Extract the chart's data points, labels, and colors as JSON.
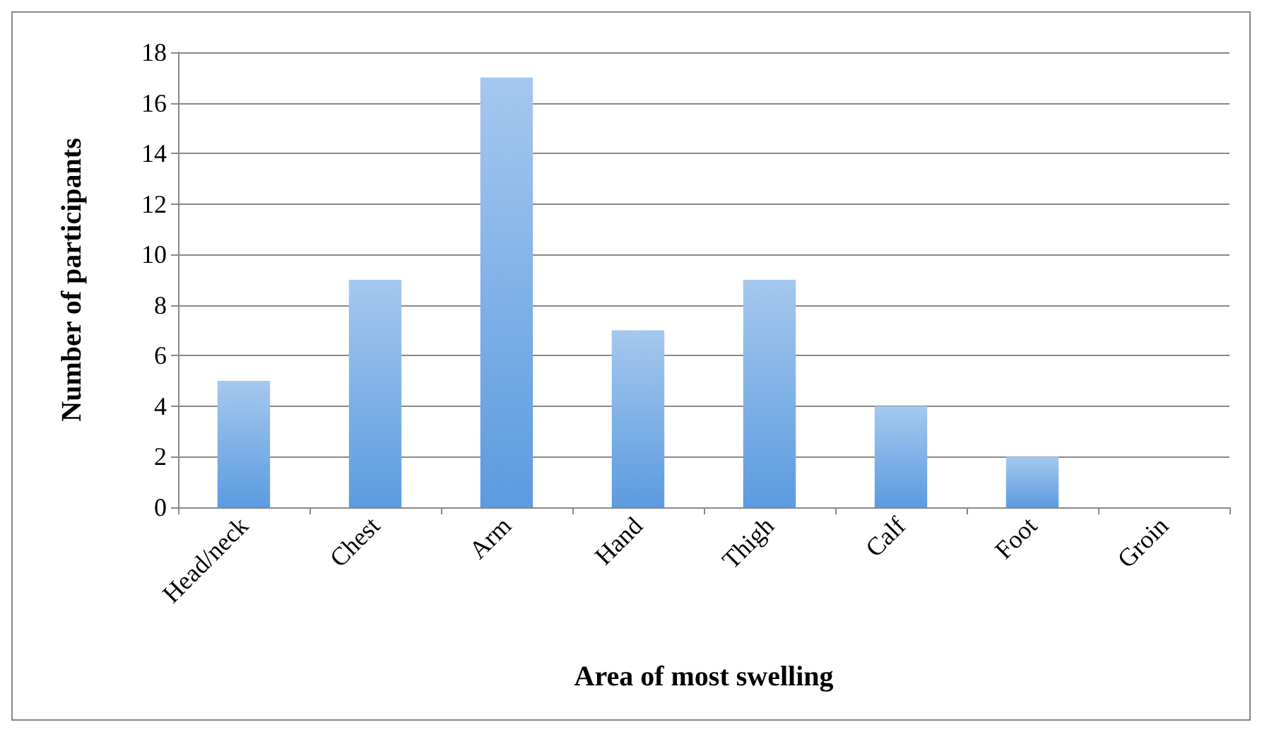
{
  "chart_data": {
    "type": "bar",
    "xlabel": "Area of most swelling",
    "ylabel": "Number of participants",
    "categories": [
      "Head/neck",
      "Chest",
      "Arm",
      "Hand",
      "Thigh",
      "Calf",
      "Foot",
      "Groin"
    ],
    "values": [
      5,
      9,
      17,
      7,
      9,
      4,
      2,
      0
    ],
    "color": "#5b9be0",
    "ylim": [
      0,
      18
    ],
    "yticks": [
      0,
      2,
      4,
      6,
      8,
      10,
      12,
      14,
      16,
      18
    ],
    "grid": "y"
  }
}
